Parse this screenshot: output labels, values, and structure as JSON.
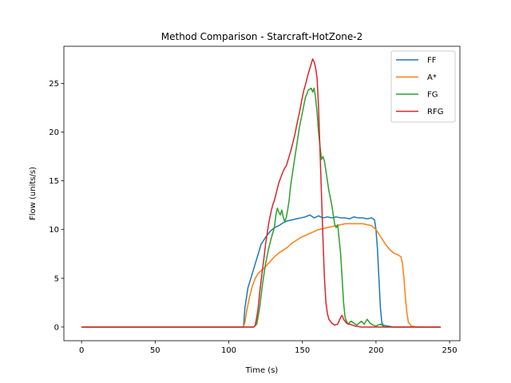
{
  "chart_data": {
    "type": "line",
    "title": "Method Comparison - Starcraft-HotZone-2",
    "xlabel": "Time (s)",
    "ylabel": "Flow (units/s)",
    "xlim": [
      -12,
      257
    ],
    "ylim": [
      -1.4,
      28.8
    ],
    "xticks": [
      0,
      50,
      100,
      150,
      200,
      250
    ],
    "yticks": [
      0,
      5,
      10,
      15,
      20,
      25
    ],
    "grid": false,
    "legend_position": "top-right",
    "series": [
      {
        "name": "FF",
        "color": "#1f77b4",
        "points": [
          [
            0,
            0
          ],
          [
            110,
            0
          ],
          [
            111,
            2
          ],
          [
            113,
            4
          ],
          [
            115,
            5
          ],
          [
            117,
            6
          ],
          [
            120,
            7.5
          ],
          [
            122,
            8.5
          ],
          [
            125,
            9.2
          ],
          [
            128,
            9.8
          ],
          [
            131,
            10.2
          ],
          [
            134,
            10.4
          ],
          [
            137,
            10.7
          ],
          [
            140,
            10.9
          ],
          [
            143,
            11.0
          ],
          [
            146,
            11.1
          ],
          [
            149,
            11.2
          ],
          [
            152,
            11.3
          ],
          [
            155,
            11.5
          ],
          [
            158,
            11.2
          ],
          [
            161,
            11.4
          ],
          [
            164,
            11.2
          ],
          [
            167,
            11.3
          ],
          [
            170,
            11.2
          ],
          [
            173,
            11.3
          ],
          [
            176,
            11.2
          ],
          [
            179,
            11.2
          ],
          [
            182,
            11.1
          ],
          [
            185,
            11.3
          ],
          [
            188,
            11.2
          ],
          [
            191,
            11.2
          ],
          [
            194,
            11.1
          ],
          [
            197,
            11.2
          ],
          [
            199,
            11.0
          ],
          [
            200,
            10.0
          ],
          [
            201,
            8
          ],
          [
            202,
            5
          ],
          [
            203,
            2
          ],
          [
            204,
            0.4
          ],
          [
            205,
            0.2
          ],
          [
            208,
            0.1
          ],
          [
            212,
            0
          ],
          [
            244,
            0
          ]
        ]
      },
      {
        "name": "A*",
        "color": "#ff7f0e",
        "points": [
          [
            0,
            0
          ],
          [
            110,
            0
          ],
          [
            111,
            0.5
          ],
          [
            112,
            1.5
          ],
          [
            114,
            3.0
          ],
          [
            116,
            4.2
          ],
          [
            118,
            5.0
          ],
          [
            120,
            5.5
          ],
          [
            122,
            5.8
          ],
          [
            125,
            6.2
          ],
          [
            128,
            6.7
          ],
          [
            131,
            7.2
          ],
          [
            134,
            7.6
          ],
          [
            137,
            7.9
          ],
          [
            140,
            8.2
          ],
          [
            143,
            8.6
          ],
          [
            146,
            8.9
          ],
          [
            149,
            9.2
          ],
          [
            152,
            9.4
          ],
          [
            155,
            9.6
          ],
          [
            158,
            9.8
          ],
          [
            161,
            10.0
          ],
          [
            164,
            10.1
          ],
          [
            167,
            10.2
          ],
          [
            170,
            10.3
          ],
          [
            173,
            10.4
          ],
          [
            176,
            10.5
          ],
          [
            179,
            10.6
          ],
          [
            182,
            10.6
          ],
          [
            185,
            10.6
          ],
          [
            188,
            10.6
          ],
          [
            191,
            10.6
          ],
          [
            194,
            10.5
          ],
          [
            197,
            10.4
          ],
          [
            200,
            10.0
          ],
          [
            203,
            9.3
          ],
          [
            206,
            8.6
          ],
          [
            209,
            8.0
          ],
          [
            212,
            7.6
          ],
          [
            215,
            7.4
          ],
          [
            217,
            7.2
          ],
          [
            218,
            6.5
          ],
          [
            219,
            5.0
          ],
          [
            220,
            3.0
          ],
          [
            221,
            1.5
          ],
          [
            222,
            0.5
          ],
          [
            224,
            0.1
          ],
          [
            228,
            0
          ],
          [
            244,
            0
          ]
        ]
      },
      {
        "name": "FG",
        "color": "#2ca02c",
        "points": [
          [
            0,
            0
          ],
          [
            117,
            0
          ],
          [
            119,
            0.3
          ],
          [
            121,
            2.0
          ],
          [
            123,
            4.5
          ],
          [
            125,
            6.5
          ],
          [
            127,
            8.0
          ],
          [
            129,
            9.2
          ],
          [
            131,
            10.2
          ],
          [
            132,
            11.5
          ],
          [
            133,
            12.2
          ],
          [
            134,
            11.8
          ],
          [
            135,
            11.5
          ],
          [
            136,
            12.0
          ],
          [
            137,
            11.3
          ],
          [
            138,
            10.8
          ],
          [
            139,
            11.2
          ],
          [
            140,
            12.0
          ],
          [
            141,
            13.0
          ],
          [
            142,
            14.5
          ],
          [
            144,
            16.5
          ],
          [
            146,
            18.5
          ],
          [
            148,
            20.5
          ],
          [
            150,
            22.0
          ],
          [
            152,
            23.5
          ],
          [
            154,
            24.3
          ],
          [
            156,
            24.5
          ],
          [
            157,
            24.1
          ],
          [
            158,
            24.5
          ],
          [
            159,
            23.5
          ],
          [
            160,
            22.0
          ],
          [
            161,
            20.0
          ],
          [
            162,
            18.5
          ],
          [
            163,
            17.2
          ],
          [
            164,
            17.5
          ],
          [
            165,
            17.0
          ],
          [
            166,
            16.0
          ],
          [
            167,
            15.0
          ],
          [
            168,
            14.0
          ],
          [
            170,
            12.5
          ],
          [
            171,
            11.5
          ],
          [
            172,
            10.5
          ],
          [
            173,
            10.2
          ],
          [
            174,
            10.5
          ],
          [
            175,
            9.0
          ],
          [
            176,
            7.5
          ],
          [
            177,
            5.0
          ],
          [
            178,
            2.5
          ],
          [
            179,
            1.0
          ],
          [
            180,
            0.6
          ],
          [
            181,
            0.3
          ],
          [
            183,
            0.6
          ],
          [
            185,
            0.4
          ],
          [
            187,
            0.2
          ],
          [
            190,
            0.6
          ],
          [
            192,
            0.3
          ],
          [
            194,
            0.8
          ],
          [
            196,
            0.4
          ],
          [
            198,
            0.2
          ],
          [
            200,
            0.1
          ],
          [
            203,
            0.3
          ],
          [
            206,
            0
          ],
          [
            210,
            0
          ],
          [
            244,
            0
          ]
        ]
      },
      {
        "name": "RFG",
        "color": "#d62728",
        "points": [
          [
            0,
            0
          ],
          [
            117,
            0
          ],
          [
            118,
            0.2
          ],
          [
            119,
            1.0
          ],
          [
            120,
            2.0
          ],
          [
            121,
            3.5
          ],
          [
            122,
            4.8
          ],
          [
            123,
            6.0
          ],
          [
            124,
            7.2
          ],
          [
            125,
            8.5
          ],
          [
            126,
            9.5
          ],
          [
            127,
            10.5
          ],
          [
            128,
            11.3
          ],
          [
            129,
            12.0
          ],
          [
            130,
            12.6
          ],
          [
            131,
            13.0
          ],
          [
            132,
            13.6
          ],
          [
            133,
            14.2
          ],
          [
            134,
            14.8
          ],
          [
            135,
            15.2
          ],
          [
            136,
            15.6
          ],
          [
            137,
            16.0
          ],
          [
            138,
            16.3
          ],
          [
            139,
            16.5
          ],
          [
            140,
            17.0
          ],
          [
            141,
            17.5
          ],
          [
            142,
            18.0
          ],
          [
            143,
            18.6
          ],
          [
            144,
            19.2
          ],
          [
            145,
            19.8
          ],
          [
            146,
            20.6
          ],
          [
            147,
            21.3
          ],
          [
            148,
            22.0
          ],
          [
            149,
            22.8
          ],
          [
            150,
            23.6
          ],
          [
            151,
            24.3
          ],
          [
            152,
            24.8
          ],
          [
            153,
            25.4
          ],
          [
            154,
            26.0
          ],
          [
            155,
            26.5
          ],
          [
            156,
            27.0
          ],
          [
            157,
            27.5
          ],
          [
            158,
            27.2
          ],
          [
            159,
            26.6
          ],
          [
            160,
            25.5
          ],
          [
            161,
            22.5
          ],
          [
            162,
            18.0
          ],
          [
            163,
            13.5
          ],
          [
            164,
            9.0
          ],
          [
            165,
            5.0
          ],
          [
            166,
            2.5
          ],
          [
            167,
            1.4
          ],
          [
            168,
            0.8
          ],
          [
            170,
            0.4
          ],
          [
            172,
            0.2
          ],
          [
            174,
            0.3
          ],
          [
            176,
            1.0
          ],
          [
            177,
            1.2
          ],
          [
            178,
            0.8
          ],
          [
            180,
            0.4
          ],
          [
            182,
            0.3
          ],
          [
            184,
            0.2
          ],
          [
            186,
            0.1
          ],
          [
            190,
            0
          ],
          [
            244,
            0
          ]
        ]
      }
    ]
  }
}
